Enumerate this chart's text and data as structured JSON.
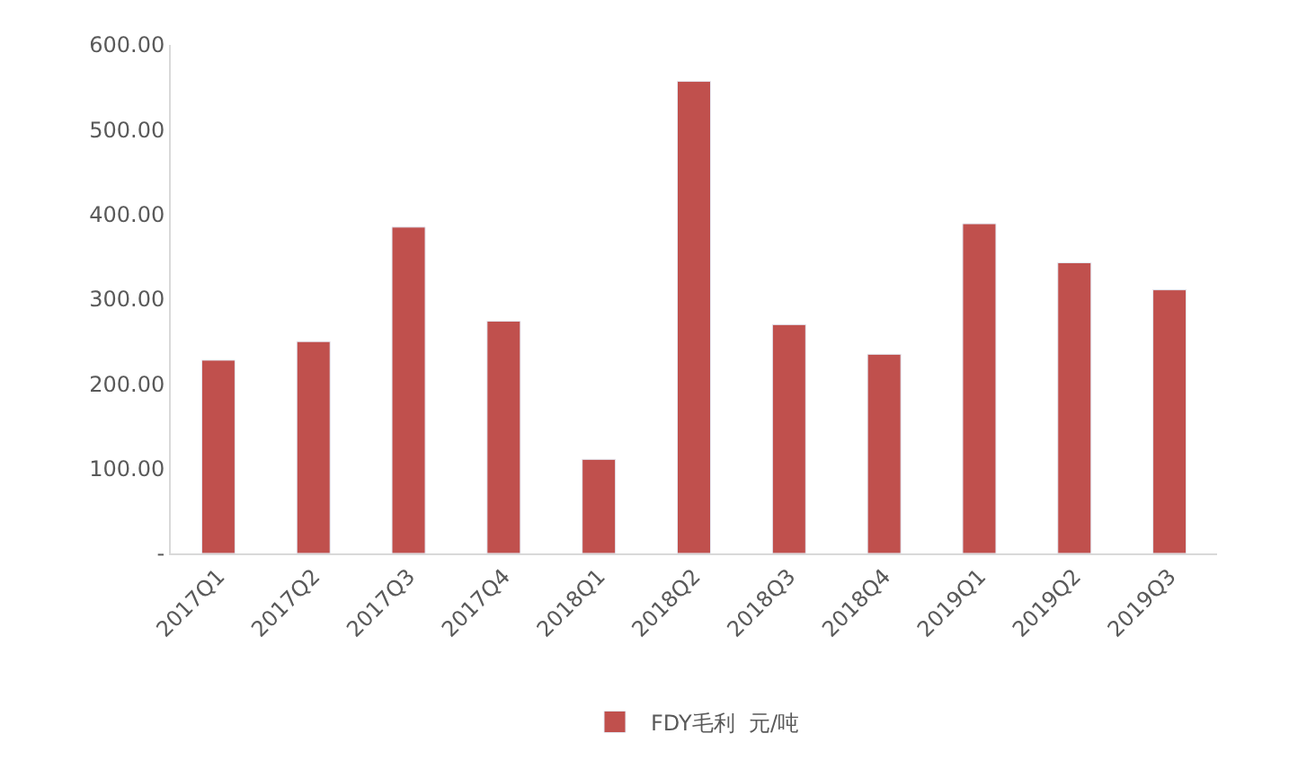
{
  "chart_data": {
    "type": "bar",
    "categories": [
      "2017Q1",
      "2017Q2",
      "2017Q3",
      "2017Q4",
      "2018Q1",
      "2018Q2",
      "2018Q3",
      "2018Q4",
      "2019Q1",
      "2019Q2",
      "2019Q3"
    ],
    "series": [
      {
        "name": "FDY毛利  元/吨",
        "color": "#c0504d",
        "values": [
          228,
          250,
          385,
          274,
          111,
          557,
          270,
          235,
          389,
          343,
          311
        ]
      }
    ],
    "ylim": [
      0,
      600
    ],
    "yticks": [
      {
        "value": 0,
        "label": "-"
      },
      {
        "value": 100,
        "label": "100.00"
      },
      {
        "value": 200,
        "label": "200.00"
      },
      {
        "value": 300,
        "label": "300.00"
      },
      {
        "value": 400,
        "label": "400.00"
      },
      {
        "value": 500,
        "label": "500.00"
      },
      {
        "value": 600,
        "label": "600.00"
      }
    ],
    "grid": false,
    "legend": "bottom"
  }
}
